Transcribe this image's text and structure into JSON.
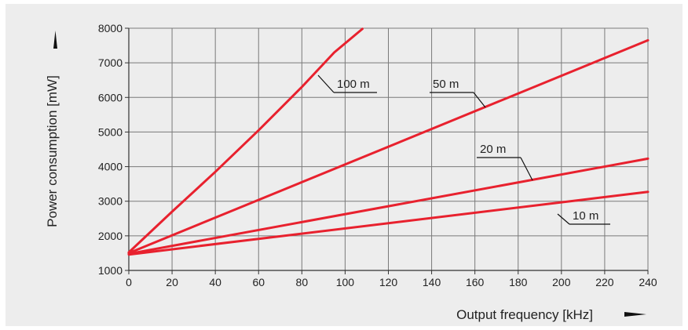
{
  "chart_data": {
    "type": "line",
    "title": "",
    "xlabel": "Output frequency [kHz]",
    "ylabel": "Power consumption [mW]",
    "xlim": [
      0,
      240
    ],
    "ylim": [
      1000,
      8000
    ],
    "xticks": [
      0,
      20,
      40,
      60,
      80,
      100,
      120,
      140,
      160,
      180,
      200,
      220,
      240
    ],
    "yticks": [
      1000,
      2000,
      3000,
      4000,
      5000,
      6000,
      7000,
      8000
    ],
    "grid": true,
    "legend": "none",
    "line_color": "#e8212e",
    "series": [
      {
        "name": "100 m",
        "points": [
          [
            0,
            1520
          ],
          [
            20,
            2700
          ],
          [
            40,
            3850
          ],
          [
            60,
            5050
          ],
          [
            80,
            6300
          ],
          [
            95,
            7300
          ],
          [
            108,
            7980
          ]
        ]
      },
      {
        "name": "50 m",
        "points": [
          [
            0,
            1500
          ],
          [
            240,
            7650
          ]
        ]
      },
      {
        "name": "20 m",
        "points": [
          [
            0,
            1480
          ],
          [
            240,
            4230
          ]
        ]
      },
      {
        "name": "10 m",
        "points": [
          [
            0,
            1460
          ],
          [
            240,
            3270
          ]
        ]
      }
    ]
  }
}
